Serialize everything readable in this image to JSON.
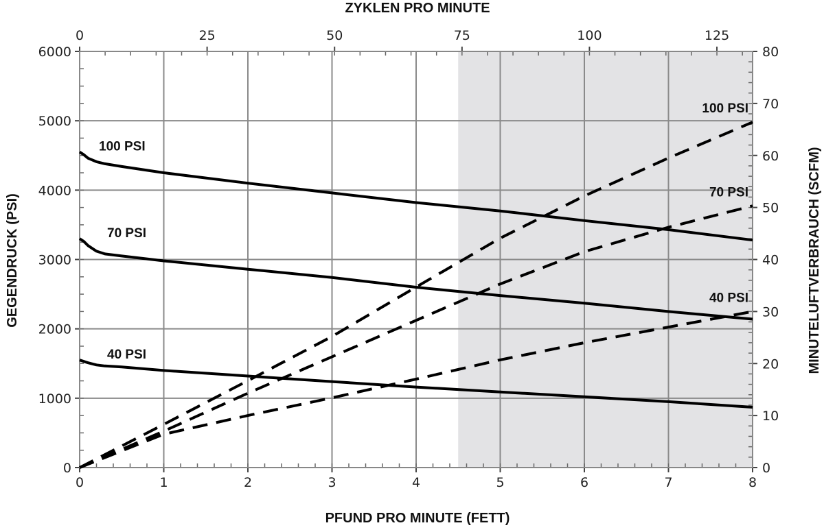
{
  "chart_data": {
    "type": "line",
    "title": "",
    "xlabel": "PFUND PRO MINUTE (FETT)",
    "x2label": "ZYKLEN PRO MINUTE",
    "ylabel": "GEGENDRUCK (PSI)",
    "y2label": "MINUTELUFTVERBRAUCH (SCFM)",
    "xlim": [
      0,
      8
    ],
    "ylim": [
      0,
      6000
    ],
    "x2lim": [
      0,
      132
    ],
    "y2lim": [
      0,
      80
    ],
    "x_ticks": [
      "0",
      "1",
      "2",
      "3",
      "4",
      "5",
      "6",
      "7",
      "8"
    ],
    "y_ticks": [
      "0",
      "1000",
      "2000",
      "3000",
      "4000",
      "5000",
      "6000"
    ],
    "x2_ticks": [
      "0",
      "25",
      "50",
      "75",
      "100",
      "125"
    ],
    "y2_ticks": [
      "0",
      "10",
      "20",
      "30",
      "40",
      "50",
      "60",
      "70",
      "80"
    ],
    "grid": true,
    "shaded_region": {
      "x_start": 4.5,
      "x_end": 8,
      "color": "#e3e3e5"
    },
    "series": [
      {
        "name": "100 PSI",
        "style": "solid",
        "axis": "left",
        "x": [
          0,
          0.05,
          0.1,
          0.2,
          0.3,
          0.5,
          1,
          2,
          3,
          4,
          5,
          6,
          7,
          8
        ],
        "y": [
          4550,
          4510,
          4460,
          4410,
          4380,
          4340,
          4250,
          4100,
          3960,
          3820,
          3700,
          3560,
          3430,
          3280
        ]
      },
      {
        "name": "70 PSI",
        "style": "solid",
        "axis": "left",
        "x": [
          0,
          0.05,
          0.1,
          0.2,
          0.3,
          0.5,
          1,
          2,
          3,
          4,
          5,
          6,
          7,
          8
        ],
        "y": [
          3300,
          3260,
          3200,
          3120,
          3080,
          3050,
          2980,
          2860,
          2740,
          2600,
          2480,
          2370,
          2250,
          2140
        ]
      },
      {
        "name": "40 PSI",
        "style": "solid",
        "axis": "left",
        "x": [
          0,
          0.05,
          0.1,
          0.2,
          0.3,
          0.5,
          1,
          2,
          3,
          4,
          5,
          6,
          7,
          8
        ],
        "y": [
          1550,
          1530,
          1510,
          1480,
          1465,
          1450,
          1400,
          1320,
          1240,
          1160,
          1090,
          1020,
          950,
          870
        ]
      },
      {
        "name": "100 PSI",
        "style": "dashed",
        "axis": "right",
        "x": [
          0,
          1,
          2,
          3,
          4,
          5,
          6,
          7,
          8
        ],
        "y": [
          0,
          8.3,
          16.7,
          25.2,
          34.7,
          44.1,
          52.2,
          59.5,
          66.4
        ]
      },
      {
        "name": "70 PSI",
        "style": "dashed",
        "axis": "right",
        "x": [
          0,
          1,
          2,
          3,
          4,
          5,
          6,
          7,
          8
        ],
        "y": [
          0,
          7,
          14.3,
          21.3,
          28.3,
          35.3,
          41.5,
          46.2,
          50.3
        ]
      },
      {
        "name": "40 PSI",
        "style": "dashed",
        "axis": "right",
        "x": [
          0,
          1,
          2,
          3,
          4,
          5,
          6,
          7,
          8
        ],
        "y": [
          0,
          6.4,
          10,
          13.4,
          17,
          20.7,
          24,
          27,
          30
        ]
      }
    ]
  }
}
